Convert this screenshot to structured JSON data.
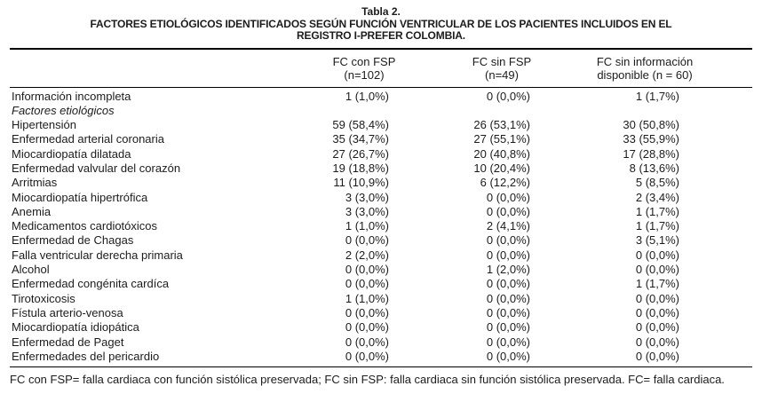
{
  "table": {
    "label": "Tabla 2.",
    "title_lines": [
      "FACTORES ETIOLÓGICOS IDENTIFICADOS SEGÚN FUNCIÓN VENTRICULAR DE LOS PACIENTES INCLUIDOS EN EL",
      "REGISTRO I-PREFER COLOMBIA."
    ],
    "columns": [
      {
        "line1": "FC con FSP",
        "line2": "(n=102)"
      },
      {
        "line1": "FC sin FSP",
        "line2": "(n=49)"
      },
      {
        "line1": "FC sin información",
        "line2": "disponible (n = 60)"
      }
    ],
    "rows": [
      {
        "label": "Información incompleta",
        "italic": false,
        "values": [
          "1 (1,0%)",
          "0 (0,0%)",
          "1 (1,7%)"
        ]
      },
      {
        "label": "Factores etiológicos",
        "italic": true,
        "values": [
          "",
          "",
          ""
        ]
      },
      {
        "label": "Hipertensión",
        "italic": false,
        "values": [
          "59 (58,4%)",
          "26 (53,1%)",
          "30 (50,8%)"
        ]
      },
      {
        "label": "Enfermedad arterial coronaria",
        "italic": false,
        "values": [
          "35 (34,7%)",
          "27 (55,1%)",
          "33 (55,9%)"
        ]
      },
      {
        "label": "Miocardiopatía dilatada",
        "italic": false,
        "values": [
          "27 (26,7%)",
          "20 (40,8%)",
          "17 (28,8%)"
        ]
      },
      {
        "label": "Enfermedad valvular del corazón",
        "italic": false,
        "values": [
          "19 (18,8%)",
          "10 (20,4%)",
          "8 (13,6%)"
        ]
      },
      {
        "label": "Arritmias",
        "italic": false,
        "values": [
          "11 (10,9%)",
          "6 (12,2%)",
          "5 (8,5%)"
        ]
      },
      {
        "label": "Miocardiopatía hipertrófica",
        "italic": false,
        "values": [
          "3 (3,0%)",
          "0 (0,0%)",
          "2 (3,4%)"
        ]
      },
      {
        "label": "Anemia",
        "italic": false,
        "values": [
          "3 (3,0%)",
          "0 (0,0%)",
          "1 (1,7%)"
        ]
      },
      {
        "label": "Medicamentos cardiotóxicos",
        "italic": false,
        "values": [
          "1 (1,0%)",
          "2 (4,1%)",
          "1 (1,7%)"
        ]
      },
      {
        "label": "Enfermedad de Chagas",
        "italic": false,
        "values": [
          "0 (0,0%)",
          "0 (0,0%)",
          "3 (5,1%)"
        ]
      },
      {
        "label": "Falla ventricular derecha primaria",
        "italic": false,
        "values": [
          "2 (2,0%)",
          "0 (0,0%)",
          "0 (0,0%)"
        ]
      },
      {
        "label": "Alcohol",
        "italic": false,
        "values": [
          "0 (0,0%)",
          "1 (2,0%)",
          "0 (0,0%)"
        ]
      },
      {
        "label": "Enfermedad congénita cardíca",
        "italic": false,
        "values": [
          "0 (0,0%)",
          "0 (0,0%)",
          "1 (1,7%)"
        ]
      },
      {
        "label": "Tirotoxicosis",
        "italic": false,
        "values": [
          "1 (1,0%)",
          "0 (0,0%)",
          "0 (0,0%)"
        ]
      },
      {
        "label": "Fístula arterio-venosa",
        "italic": false,
        "values": [
          "0 (0,0%)",
          "0 (0,0%)",
          "0 (0,0%)"
        ]
      },
      {
        "label": "Miocardiopatía idiopática",
        "italic": false,
        "values": [
          "0 (0,0%)",
          "0 (0,0%)",
          "0 (0,0%)"
        ]
      },
      {
        "label": "Enfermedad de Paget",
        "italic": false,
        "values": [
          "0 (0,0%)",
          "0 (0,0%)",
          "0 (0,0%)"
        ]
      },
      {
        "label": "Enfermedades del pericardio",
        "italic": false,
        "values": [
          "0 (0,0%)",
          "0 (0,0%)",
          "0 (0,0%)"
        ]
      }
    ],
    "footnote": "FC con FSP= falla cardiaca con función sistólica preservada; FC sin FSP: falla cardiaca sin función sistólica preservada. FC= falla cardiaca.",
    "text_color": "#1c1c1c",
    "rule_color": "#000000",
    "background_color": "#ffffff"
  }
}
